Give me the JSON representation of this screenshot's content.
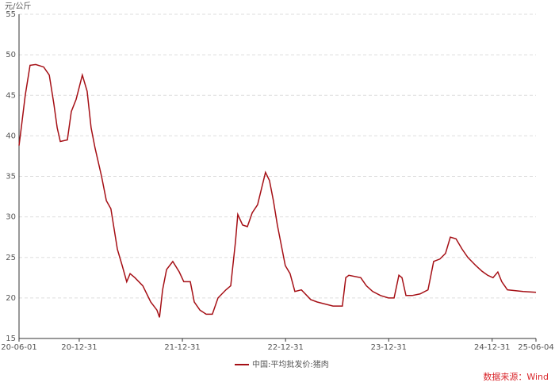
{
  "chart_data": {
    "type": "line",
    "y_unit": "元/公斤",
    "source": "数据来源：Wind",
    "x": [
      "20-06-01",
      "20-06-09",
      "20-06-23",
      "20-07-10",
      "20-07-30",
      "20-08-27",
      "20-09-16",
      "20-10-02",
      "20-10-14",
      "20-10-25",
      "20-11-19",
      "20-12-03",
      "20-12-20",
      "20-12-31",
      "21-01-11",
      "21-01-28",
      "21-02-11",
      "21-02-25",
      "21-03-20",
      "21-04-06",
      "21-04-22",
      "21-05-15",
      "21-06-01",
      "21-06-17",
      "21-06-29",
      "21-07-16",
      "21-08-13",
      "21-09-10",
      "21-10-02",
      "21-10-11",
      "21-10-22",
      "21-11-05",
      "21-11-27",
      "21-12-20",
      "22-01-05",
      "22-01-28",
      "22-02-11",
      "22-03-03",
      "22-03-25",
      "22-04-16",
      "22-05-06",
      "22-06-03",
      "22-06-20",
      "22-07-07",
      "22-07-15",
      "22-08-01",
      "22-08-18",
      "22-09-04",
      "22-09-23",
      "22-10-07",
      "22-10-21",
      "22-11-04",
      "22-11-18",
      "22-12-02",
      "22-12-16",
      "22-12-30",
      "23-01-16",
      "23-02-02",
      "23-02-25",
      "23-03-30",
      "23-04-22",
      "23-06-17",
      "23-07-20",
      "23-08-01",
      "23-08-12",
      "23-09-23",
      "23-10-13",
      "23-11-04",
      "23-12-02",
      "23-12-30",
      "24-01-19",
      "24-02-05",
      "24-02-16",
      "24-03-01",
      "24-03-23",
      "24-04-20",
      "24-05-18",
      "24-06-07",
      "24-06-29",
      "24-07-19",
      "24-08-05",
      "24-08-25",
      "24-09-16",
      "24-10-06",
      "24-11-03",
      "24-11-25",
      "24-12-15",
      "25-01-03",
      "25-01-20",
      "25-02-03",
      "25-02-23",
      "25-04-20",
      "25-06-04"
    ],
    "series": [
      {
        "name": "中国:平均批发价:猪肉",
        "color": "#a50f15",
        "values": [
          38.8,
          41,
          45,
          48.7,
          48.8,
          48.5,
          47.5,
          44,
          41,
          39.3,
          39.5,
          43,
          44.5,
          46,
          47.5,
          45.5,
          41,
          38.5,
          35,
          32,
          31,
          26,
          24,
          22,
          23,
          22.5,
          21.5,
          19.5,
          18.5,
          17.6,
          21,
          23.5,
          24.5,
          23.2,
          22,
          22,
          19.5,
          18.5,
          18,
          18,
          20,
          21,
          21.5,
          27,
          30.3,
          29,
          28.8,
          30.5,
          31.5,
          33.5,
          35.5,
          34.5,
          32,
          29,
          26.5,
          24,
          23,
          20.8,
          21,
          19.8,
          19.5,
          19,
          19,
          22.5,
          22.8,
          22.5,
          21.5,
          20.8,
          20.3,
          20,
          20,
          22.8,
          22.5,
          20.3,
          20.3,
          20.5,
          21,
          24.5,
          24.8,
          25.5,
          27.5,
          27.3,
          26,
          25,
          24,
          23.3,
          22.8,
          22.5,
          23.2,
          22,
          21,
          20.8,
          20.7
        ]
      }
    ],
    "xlim": [
      "20-06-01",
      "25-06-04"
    ],
    "xticks": [
      "20-06-01",
      "20-12-31",
      "21-12-31",
      "22-12-31",
      "23-12-31",
      "24-12-31",
      "25-06-04"
    ],
    "ylim": [
      15,
      55
    ],
    "yticks": [
      15,
      20,
      25,
      30,
      35,
      40,
      45,
      50,
      55
    ],
    "grid": true
  }
}
